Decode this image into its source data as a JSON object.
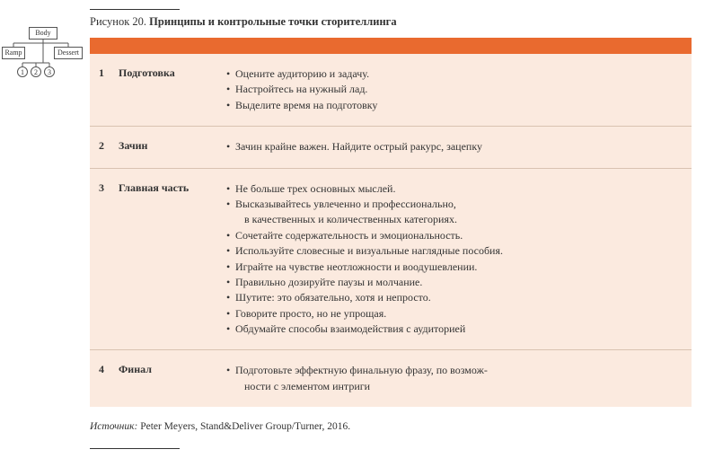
{
  "caption": {
    "label": "Рисунок 20.",
    "title": "Принципы и контрольные точки сторителлинга"
  },
  "tree": {
    "body": "Body",
    "ramp": "Ramp",
    "dessert": "Dessert",
    "c1": "1",
    "c2": "2",
    "c3": "3",
    "line_color": "#555555",
    "border_color": "#555555"
  },
  "table": {
    "header_color": "#e96a2f",
    "background_color": "#fbeadf",
    "divider_color": "#d9c2b1",
    "rows": [
      {
        "num": "1",
        "label": "Подготовка",
        "bullets": [
          "Оцените аудиторию и задачу.",
          "Настройтесь на нужный лад.",
          "Выделите время на подготовку"
        ]
      },
      {
        "num": "2",
        "label": "Зачин",
        "bullets": [
          "Зачин крайне важен. Найдите острый ракурс, зацепку"
        ]
      },
      {
        "num": "3",
        "label": "Главная часть",
        "bullets": [
          "Не больше трех основных мыслей.",
          "Высказывайтесь увлеченно и профессионально,\nв качественных и количественных категориях.",
          "Сочетайте содержательность и эмоциональность.",
          "Используйте словесные и визуальные наглядные пособия.",
          "Играйте на чувстве неотложности и воодушевлении.",
          "Правильно дозируйте паузы и молчание.",
          "Шутите: это обязательно, хотя и непросто.",
          "Говорите просто, но не упрощая.",
          "Обдумайте способы взаимодействия с аудиторией"
        ]
      },
      {
        "num": "4",
        "label": "Финал",
        "bullets": [
          "Подготовьте эффектную финальную фразу, по возмож-\nности с элементом интриги"
        ]
      }
    ]
  },
  "source": {
    "label": "Источник:",
    "text": "Peter Meyers, Stand&Deliver Group/Turner, 2016."
  }
}
